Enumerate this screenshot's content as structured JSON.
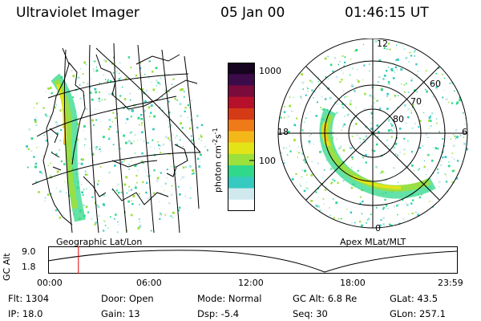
{
  "header": {
    "instrument": "Ultraviolet Imager",
    "date": "05 Jan 00",
    "time": "01:46:15 UT"
  },
  "colorbar": {
    "unit": "photon cm",
    "unit_sup1": "-2",
    "unit_mid": "s",
    "unit_sup2": "-1",
    "tick_high": "1000",
    "tick_mid": "100",
    "colors": [
      "#ffffff",
      "#cfe9ef",
      "#35c9c0",
      "#2fd88a",
      "#9ce03b",
      "#e3e418",
      "#f3b71a",
      "#ee7a18",
      "#d53a16",
      "#b7102a",
      "#7a0b3b",
      "#3c0b4a",
      "#170420"
    ]
  },
  "polar": {
    "mlt_top": "12",
    "mlt_left": "18",
    "mlt_right": "6",
    "mlt_bottom": "0",
    "lat_60": "60",
    "lat_70": "70",
    "lat_80": "80"
  },
  "labels": {
    "geo": "Geographic Lat/Lon",
    "apex": "Apex MLat/MLT"
  },
  "altplot": {
    "ylabel": "GC Alt",
    "y_top": "9.0",
    "y_bottom": "1.8",
    "ticks": [
      "00:00",
      "06:00",
      "12:00",
      "18:00",
      "23:59"
    ],
    "current_fraction": 0.074
  },
  "info": {
    "flt": "Flt: 1304",
    "ip": "IP: 18.0",
    "door": "Door: Open",
    "gain": "Gain: 13",
    "mode": "Mode: Normal",
    "dsp": "Dsp:    -5.4",
    "gcalt": "GC Alt: 6.8 Re",
    "seq": "Seq: 30",
    "glat": "GLat:   43.5",
    "glon": "GLon: 257.1"
  }
}
